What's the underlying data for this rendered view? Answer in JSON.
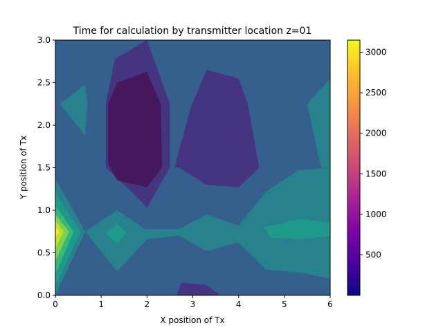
{
  "chart_data": {
    "type": "contour",
    "title": "Time for calculation by transmitter location z=01",
    "xlabel": "X position of Tx",
    "ylabel": "Y position of Tx",
    "xlim": [
      0,
      6
    ],
    "ylim": [
      0,
      3
    ],
    "x_ticks": [
      "0",
      "1",
      "2",
      "3",
      "4",
      "5",
      "6"
    ],
    "y_ticks": [
      "0.0",
      "0.5",
      "1.0",
      "1.5",
      "2.0",
      "2.5",
      "3.0"
    ],
    "colorbar": {
      "colormap": "plasma",
      "range": [
        0,
        3150
      ],
      "ticks": [
        "500",
        "1000",
        "1500",
        "2000",
        "2500",
        "3000"
      ]
    },
    "colormap": "viridis",
    "levels": [
      {
        "name": "deep-purple",
        "color": "#46195f"
      },
      {
        "name": "purple",
        "color": "#453580"
      },
      {
        "name": "blue",
        "color": "#355f8d"
      },
      {
        "name": "teal",
        "color": "#27828e"
      },
      {
        "name": "green-teal",
        "color": "#1f9a8a"
      },
      {
        "name": "green",
        "color": "#37b878"
      },
      {
        "name": "light-green",
        "color": "#7ad151"
      },
      {
        "name": "yellow-green",
        "color": "#bddf26"
      },
      {
        "name": "yellow",
        "color": "#fde725"
      }
    ],
    "regions": [
      {
        "level": 1,
        "points": [
          [
            1.1,
            2.25
          ],
          [
            1.3,
            2.78
          ],
          [
            2.0,
            3.0
          ],
          [
            2.5,
            2.25
          ],
          [
            2.5,
            1.5
          ],
          [
            2.0,
            1.03
          ],
          [
            1.7,
            1.2
          ],
          [
            1.1,
            1.5
          ]
        ]
      },
      {
        "level": 0,
        "points": [
          [
            1.15,
            2.25
          ],
          [
            1.35,
            2.5
          ],
          [
            2.0,
            2.63
          ],
          [
            2.3,
            2.25
          ],
          [
            2.33,
            1.5
          ],
          [
            2.0,
            1.27
          ],
          [
            1.35,
            1.35
          ],
          [
            1.15,
            1.55
          ]
        ]
      },
      {
        "level": 1,
        "points": [
          [
            2.6,
            1.5
          ],
          [
            2.95,
            2.2
          ],
          [
            3.3,
            2.65
          ],
          [
            4.0,
            2.55
          ],
          [
            4.2,
            2.25
          ],
          [
            4.45,
            1.5
          ],
          [
            4.0,
            1.27
          ],
          [
            3.3,
            1.3
          ],
          [
            2.7,
            1.5
          ]
        ]
      },
      {
        "level": 3,
        "points": [
          [
            0.1,
            2.25
          ],
          [
            0.65,
            2.48
          ],
          [
            0.7,
            2.25
          ],
          [
            0.65,
            1.88
          ]
        ]
      },
      {
        "level": 3,
        "points": [
          [
            5.5,
            2.25
          ],
          [
            6.0,
            2.55
          ],
          [
            6.0,
            1.5
          ],
          [
            5.8,
            1.5
          ]
        ]
      },
      {
        "level": 3,
        "points": [
          [
            0,
            1.37
          ],
          [
            0.65,
            0.75
          ],
          [
            0.0,
            0.0
          ]
        ]
      },
      {
        "level": 3,
        "points": [
          [
            0.65,
            0.75
          ],
          [
            1.35,
            1.0
          ],
          [
            1.95,
            0.78
          ],
          [
            2.7,
            0.78
          ],
          [
            3.3,
            0.95
          ],
          [
            4.0,
            0.82
          ],
          [
            4.6,
            1.22
          ],
          [
            5.3,
            1.47
          ],
          [
            6.0,
            1.5
          ],
          [
            6.0,
            0.2
          ],
          [
            5.3,
            0.27
          ],
          [
            4.6,
            0.3
          ],
          [
            4.0,
            0.62
          ],
          [
            3.3,
            0.52
          ],
          [
            2.7,
            0.7
          ],
          [
            2.0,
            0.66
          ],
          [
            1.35,
            0.28
          ]
        ]
      },
      {
        "level": 4,
        "points": [
          [
            1.1,
            0.73
          ],
          [
            1.35,
            0.85
          ],
          [
            1.55,
            0.73
          ],
          [
            1.35,
            0.6
          ]
        ]
      },
      {
        "level": 4,
        "points": [
          [
            4.55,
            0.8
          ],
          [
            5.0,
            0.85
          ],
          [
            5.35,
            0.9
          ],
          [
            6.0,
            0.85
          ],
          [
            6.0,
            0.7
          ],
          [
            5.35,
            0.66
          ],
          [
            4.7,
            0.68
          ]
        ]
      },
      {
        "level": 1,
        "points": [
          [
            2.65,
            0.0
          ],
          [
            2.75,
            0.15
          ],
          [
            3.3,
            0.12
          ],
          [
            3.6,
            0.0
          ]
        ]
      },
      {
        "level": 4,
        "points": [
          [
            0,
            1.2
          ],
          [
            0.55,
            0.75
          ],
          [
            0,
            0.1
          ]
        ]
      },
      {
        "level": 5,
        "points": [
          [
            0,
            1.05
          ],
          [
            0.4,
            0.75
          ],
          [
            0,
            0.25
          ]
        ]
      },
      {
        "level": 6,
        "points": [
          [
            0,
            0.95
          ],
          [
            0.3,
            0.75
          ],
          [
            0,
            0.4
          ]
        ]
      },
      {
        "level": 7,
        "points": [
          [
            0,
            0.88
          ],
          [
            0.18,
            0.75
          ],
          [
            0,
            0.55
          ]
        ]
      },
      {
        "level": 8,
        "points": [
          [
            0,
            0.82
          ],
          [
            0.08,
            0.75
          ],
          [
            0,
            0.68
          ]
        ]
      }
    ]
  }
}
